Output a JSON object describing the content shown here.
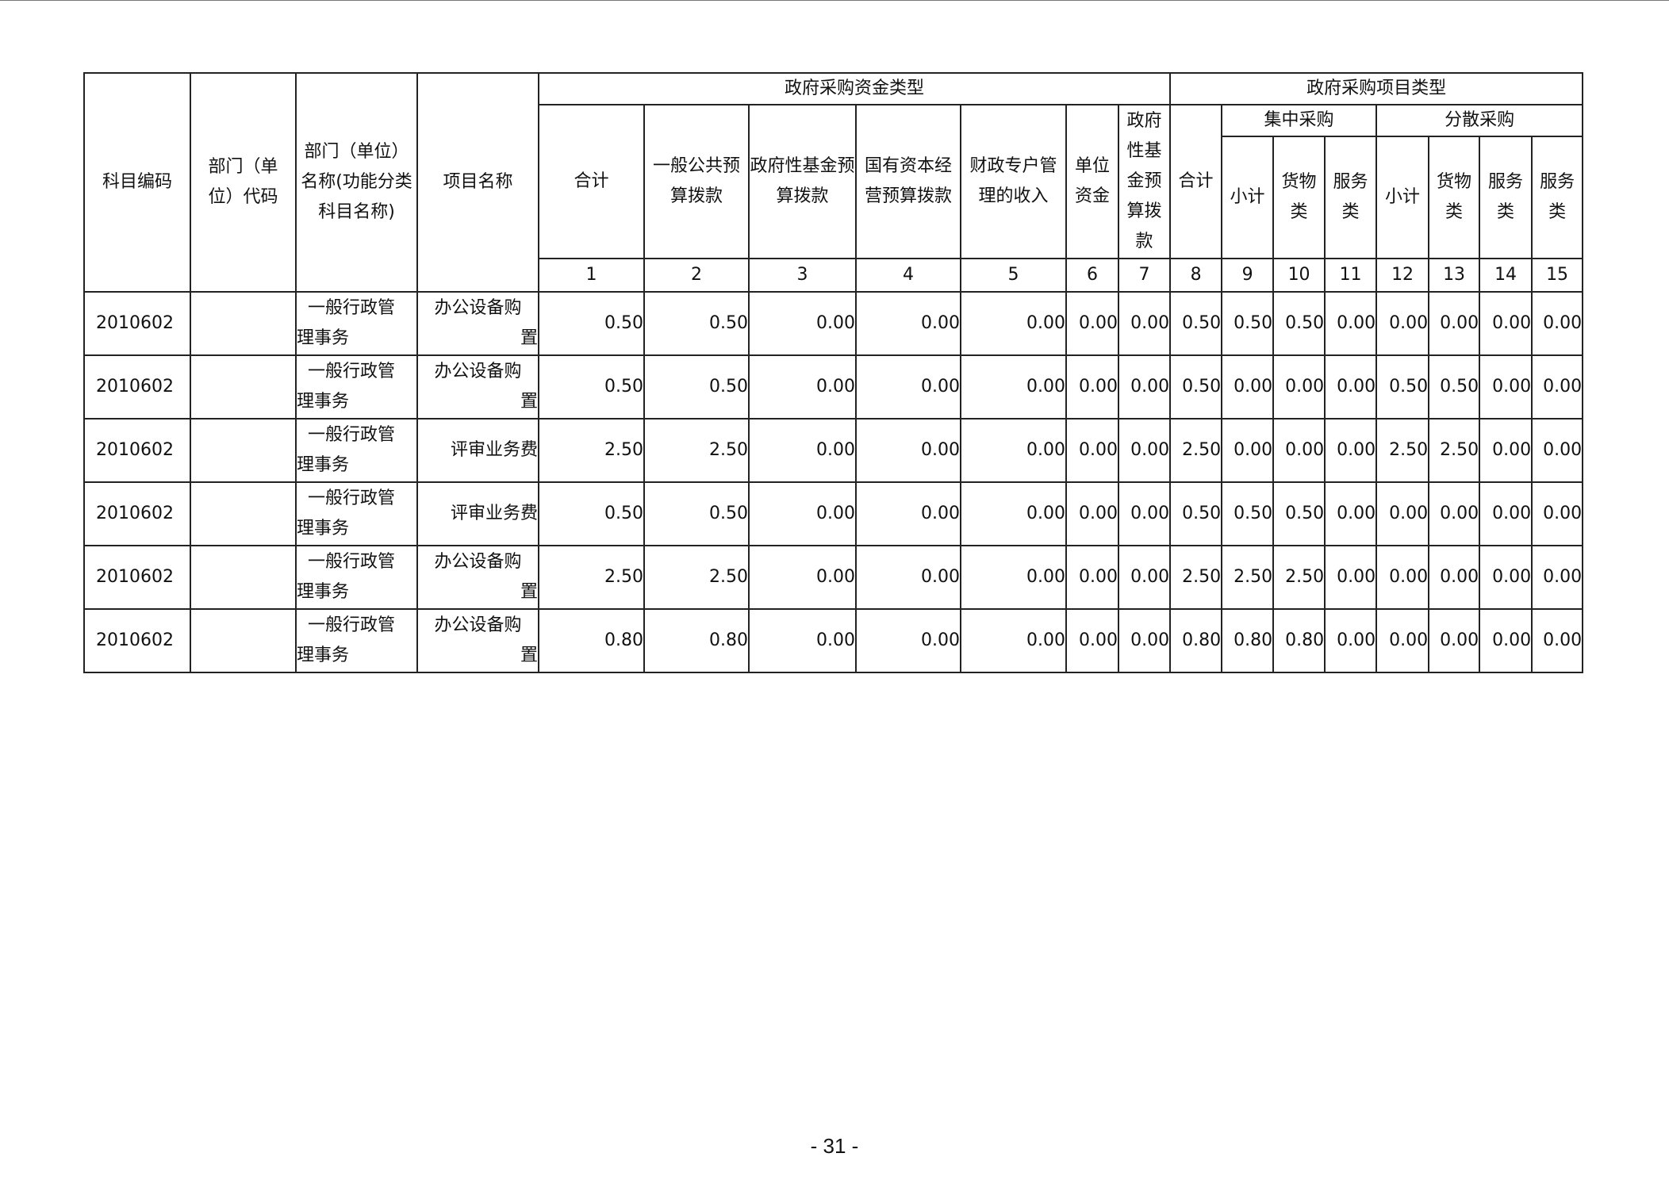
{
  "headers": {
    "subject_code": "科目编码",
    "dept_code": "部门（单位）代码",
    "dept_name": "部门（单位）名称(功能分类科目名称)",
    "project_name": "项目名称",
    "fund_type_group": "政府采购资金类型",
    "project_type_group": "政府采购项目类型",
    "fund_cols": [
      "合计",
      "一般公共预算拨款",
      "政府性基金预算拨款",
      "国有资本经营预算拨款",
      "财政专户管理的收入",
      "单位资金",
      "政府性基金预算拨款"
    ],
    "total": "合计",
    "centralized": "集中采购",
    "decentralized": "分散采购",
    "centralized_cols": [
      "小计",
      "货物类",
      "服务类"
    ],
    "decentralized_cols": [
      "小计",
      "货物类",
      "服务类",
      "服务类"
    ],
    "col_numbers": [
      "1",
      "2",
      "3",
      "4",
      "5",
      "6",
      "7",
      "8",
      "9",
      "10",
      "11",
      "12",
      "13",
      "14",
      "15"
    ]
  },
  "rows": [
    {
      "code": "2010602",
      "dept_code": "",
      "name_a": "一般行政管",
      "name_b": "理事务",
      "project_a": "办公设备购",
      "project_b": "置",
      "values": [
        "0.50",
        "0.50",
        "0.00",
        "0.00",
        "0.00",
        "0.00",
        "0.00",
        "0.50",
        "0.50",
        "0.50",
        "0.00",
        "0.00",
        "0.00",
        "0.00",
        "0.00"
      ]
    },
    {
      "code": "2010602",
      "dept_code": "",
      "name_a": "一般行政管",
      "name_b": "理事务",
      "project_a": "办公设备购",
      "project_b": "置",
      "values": [
        "0.50",
        "0.50",
        "0.00",
        "0.00",
        "0.00",
        "0.00",
        "0.00",
        "0.50",
        "0.00",
        "0.00",
        "0.00",
        "0.50",
        "0.50",
        "0.00",
        "0.00"
      ]
    },
    {
      "code": "2010602",
      "dept_code": "",
      "name_a": "一般行政管",
      "name_b": "理事务",
      "project_a": "评审业务费",
      "project_b": "",
      "values": [
        "2.50",
        "2.50",
        "0.00",
        "0.00",
        "0.00",
        "0.00",
        "0.00",
        "2.50",
        "0.00",
        "0.00",
        "0.00",
        "2.50",
        "2.50",
        "0.00",
        "0.00"
      ]
    },
    {
      "code": "2010602",
      "dept_code": "",
      "name_a": "一般行政管",
      "name_b": "理事务",
      "project_a": "评审业务费",
      "project_b": "",
      "values": [
        "0.50",
        "0.50",
        "0.00",
        "0.00",
        "0.00",
        "0.00",
        "0.00",
        "0.50",
        "0.50",
        "0.50",
        "0.00",
        "0.00",
        "0.00",
        "0.00",
        "0.00"
      ]
    },
    {
      "code": "2010602",
      "dept_code": "",
      "name_a": "一般行政管",
      "name_b": "理事务",
      "project_a": "办公设备购",
      "project_b": "置",
      "values": [
        "2.50",
        "2.50",
        "0.00",
        "0.00",
        "0.00",
        "0.00",
        "0.00",
        "2.50",
        "2.50",
        "2.50",
        "0.00",
        "0.00",
        "0.00",
        "0.00",
        "0.00"
      ]
    },
    {
      "code": "2010602",
      "dept_code": "",
      "name_a": "一般行政管",
      "name_b": "理事务",
      "project_a": "办公设备购",
      "project_b": "置",
      "values": [
        "0.80",
        "0.80",
        "0.00",
        "0.00",
        "0.00",
        "0.00",
        "0.00",
        "0.80",
        "0.80",
        "0.80",
        "0.00",
        "0.00",
        "0.00",
        "0.00",
        "0.00"
      ]
    }
  ],
  "page_number": "- 31 -"
}
